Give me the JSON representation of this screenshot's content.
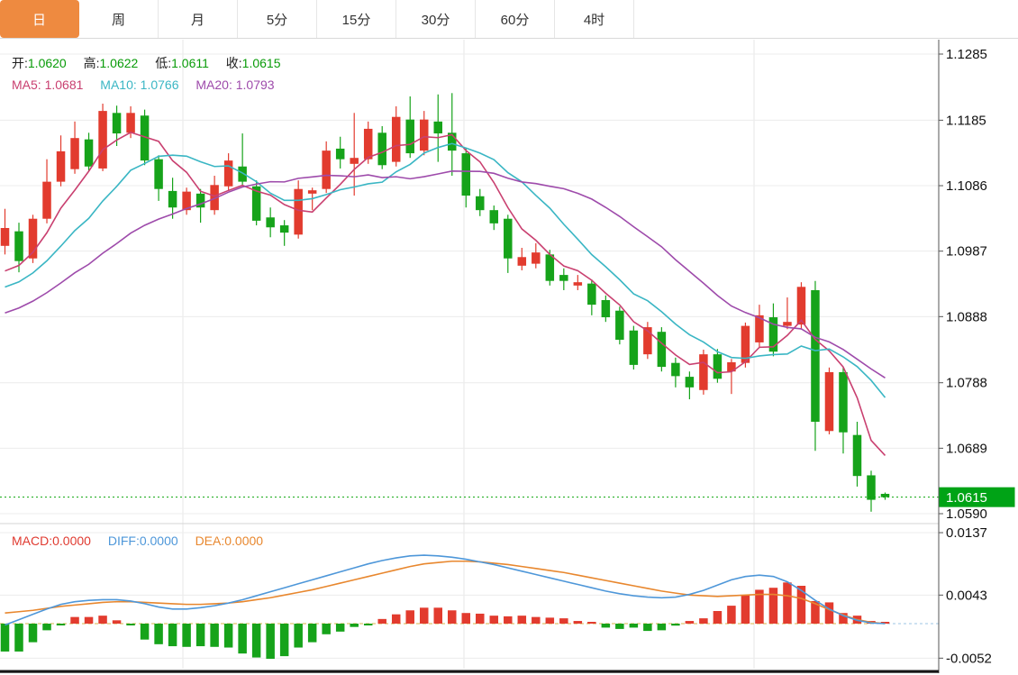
{
  "tabs": [
    {
      "label": "日",
      "active": true
    },
    {
      "label": "周",
      "active": false
    },
    {
      "label": "月",
      "active": false
    },
    {
      "label": "5分",
      "active": false
    },
    {
      "label": "15分",
      "active": false
    },
    {
      "label": "30分",
      "active": false
    },
    {
      "label": "60分",
      "active": false
    },
    {
      "label": "4时",
      "active": false
    }
  ],
  "colors": {
    "active_tab": "#ee8a40",
    "up_candle": "#e23b2e",
    "down_candle": "#16a31a",
    "ma5": "#c94070",
    "ma10": "#3ab6c4",
    "ma20": "#9e4bab",
    "diff_line": "#4e97d9",
    "dea_line": "#e8872e",
    "macd_label": "#e03a30",
    "ohlc_value": "#089b08",
    "price_badge": "#00a316",
    "current_price_line": "#0aa50a",
    "zero_dash_line": "#d8b44a",
    "grid": "#ececec",
    "axis": "#555555"
  },
  "price_panel": {
    "ohlc_legend": [
      {
        "label": "开:",
        "value": "1.0620"
      },
      {
        "label": "高:",
        "value": "1.0622"
      },
      {
        "label": "低:",
        "value": "1.0611"
      },
      {
        "label": "收:",
        "value": "1.0615"
      }
    ],
    "ma_legend": [
      {
        "label": "MA5:",
        "value": "1.0681"
      },
      {
        "label": "MA10:",
        "value": "1.0766"
      },
      {
        "label": "MA20:",
        "value": "1.0793"
      }
    ],
    "y_axis_labels": [
      "1.1285",
      "1.1185",
      "1.1086",
      "1.0987",
      "1.0888",
      "1.0788",
      "1.0689",
      "1.0590"
    ],
    "current_price_badge": "1.0615"
  },
  "macd_panel": {
    "legend": [
      {
        "label": "MACD:",
        "value": "0.0000"
      },
      {
        "label": "DIFF:",
        "value": "0.0000"
      },
      {
        "label": "DEA:",
        "value": "0.0000"
      }
    ],
    "y_axis_labels": [
      "0.0137",
      "0.0043",
      "-0.0052"
    ]
  },
  "chart_data": [
    {
      "type": "candlestick",
      "title": "EUR daily candlestick panel with MA5/MA10/MA20 overlays",
      "ylim": [
        1.059,
        1.1285
      ],
      "y_ticks": [
        1.1285,
        1.1185,
        1.1086,
        1.0987,
        1.0888,
        1.0788,
        1.0689,
        1.059
      ],
      "grid": true,
      "legend_position": "top-left",
      "current_price": 1.0615,
      "ma_periods": [
        5,
        10,
        20
      ],
      "ma_values_displayed": {
        "MA5": 1.0681,
        "MA10": 1.0766,
        "MA20": 1.0793
      },
      "ohlc_displayed": {
        "open": 1.062,
        "high": 1.0622,
        "low": 1.0611,
        "close": 1.0615
      },
      "ma_lead_in_closes": [
        1.0822,
        1.0829,
        1.0836,
        1.0844,
        1.0851,
        1.0858,
        1.0865,
        1.0872,
        1.088,
        1.0887,
        1.0894,
        1.0901,
        1.0908,
        1.0916,
        1.0923,
        1.093,
        1.0937,
        1.0944,
        1.0952
      ],
      "candles": [
        [
          1.0995,
          1.1051,
          1.0982,
          1.1022
        ],
        [
          1.1017,
          1.103,
          1.0955,
          1.0972
        ],
        [
          1.0976,
          1.1042,
          1.0969,
          1.1036
        ],
        [
          1.1036,
          1.1126,
          1.1029,
          1.1092
        ],
        [
          1.1092,
          1.1162,
          1.1085,
          1.1138
        ],
        [
          1.1111,
          1.1183,
          1.1104,
          1.1158
        ],
        [
          1.1156,
          1.1166,
          1.1108,
          1.1115
        ],
        [
          1.1112,
          1.121,
          1.1108,
          1.1199
        ],
        [
          1.1196,
          1.1207,
          1.1146,
          1.1165
        ],
        [
          1.1166,
          1.1206,
          1.1158,
          1.1196
        ],
        [
          1.1192,
          1.1201,
          1.1117,
          1.1124
        ],
        [
          1.1126,
          1.1132,
          1.1063,
          1.1081
        ],
        [
          1.1078,
          1.1098,
          1.1036,
          1.1053
        ],
        [
          1.1049,
          1.1083,
          1.1042,
          1.1077
        ],
        [
          1.1074,
          1.1081,
          1.103,
          1.1053
        ],
        [
          1.1049,
          1.1101,
          1.1042,
          1.1087
        ],
        [
          1.1085,
          1.1135,
          1.1078,
          1.1124
        ],
        [
          1.1115,
          1.1165,
          1.1085,
          1.1092
        ],
        [
          1.1085,
          1.1094,
          1.1026,
          1.1033
        ],
        [
          1.1038,
          1.1053,
          1.1008,
          1.1023
        ],
        [
          1.1026,
          1.1034,
          1.0995,
          1.1015
        ],
        [
          1.1012,
          1.1094,
          1.1006,
          1.1081
        ],
        [
          1.1074,
          1.1083,
          1.1049,
          1.1079
        ],
        [
          1.1081,
          1.1153,
          1.1075,
          1.1139
        ],
        [
          1.1142,
          1.116,
          1.1112,
          1.1126
        ],
        [
          1.1119,
          1.1196,
          1.1071,
          1.1128
        ],
        [
          1.1126,
          1.1183,
          1.1119,
          1.1172
        ],
        [
          1.1166,
          1.1176,
          1.1111,
          1.1117
        ],
        [
          1.1122,
          1.1206,
          1.1115,
          1.119
        ],
        [
          1.1186,
          1.1221,
          1.1128,
          1.1135
        ],
        [
          1.1139,
          1.1199,
          1.1132,
          1.1186
        ],
        [
          1.1183,
          1.1224,
          1.1122,
          1.1165
        ],
        [
          1.1166,
          1.1226,
          1.1101,
          1.1139
        ],
        [
          1.1135,
          1.1142,
          1.1053,
          1.1071
        ],
        [
          1.107,
          1.1081,
          1.104,
          1.1049
        ],
        [
          1.1049,
          1.1056,
          1.1019,
          1.1029
        ],
        [
          1.1036,
          1.1042,
          1.0954,
          1.0976
        ],
        [
          1.0965,
          1.0992,
          1.0958,
          1.0978
        ],
        [
          1.0968,
          1.0999,
          1.0961,
          1.0985
        ],
        [
          1.0982,
          1.0989,
          1.0935,
          1.0942
        ],
        [
          1.0951,
          1.0961,
          1.0928,
          1.0942
        ],
        [
          1.0935,
          1.0951,
          1.0928,
          1.094
        ],
        [
          1.0938,
          1.0944,
          1.089,
          1.0906
        ],
        [
          1.0913,
          1.092,
          1.088,
          1.0887
        ],
        [
          1.0897,
          1.0903,
          1.0846,
          1.0853
        ],
        [
          1.0867,
          1.0874,
          1.0808,
          1.0815
        ],
        [
          1.0831,
          1.088,
          1.0824,
          1.0872
        ],
        [
          1.0865,
          1.0872,
          1.0805,
          1.0812
        ],
        [
          1.0818,
          1.0826,
          1.0781,
          1.0798
        ],
        [
          1.0797,
          1.0805,
          1.0763,
          1.0781
        ],
        [
          1.0777,
          1.0838,
          1.077,
          1.0831
        ],
        [
          1.0831,
          1.0839,
          1.0788,
          1.0794
        ],
        [
          1.0805,
          1.0824,
          1.0771,
          1.0819
        ],
        [
          1.0818,
          1.0879,
          1.0811,
          1.0874
        ],
        [
          1.0849,
          1.0906,
          1.0842,
          1.089
        ],
        [
          1.0887,
          1.0908,
          1.0828,
          1.0835
        ],
        [
          1.0874,
          1.0917,
          1.0869,
          1.088
        ],
        [
          1.0876,
          1.094,
          1.0869,
          1.0933
        ],
        [
          1.0928,
          1.0942,
          1.0685,
          1.0729
        ],
        [
          1.0715,
          1.0811,
          1.071,
          1.0804
        ],
        [
          1.0804,
          1.0811,
          1.0681,
          1.0713
        ],
        [
          1.0709,
          1.0729,
          1.0631,
          1.0647
        ],
        [
          1.0648,
          1.0655,
          1.0593,
          1.0611
        ],
        [
          1.062,
          1.0622,
          1.0611,
          1.0615
        ]
      ]
    },
    {
      "type": "bar",
      "title": "MACD panel (histogram with DIFF and DEA lines)",
      "ylim": [
        -0.0075,
        0.0145
      ],
      "y_ticks": [
        0.0137,
        0.0043,
        -0.0052
      ],
      "values_displayed": {
        "MACD": 0.0,
        "DIFF": 0.0,
        "DEA": 0.0
      },
      "hist": [
        -0.0042,
        -0.0042,
        -0.0028,
        -0.001,
        -0.0001,
        0.001,
        0.001,
        0.0012,
        0.0005,
        -0.0002,
        -0.0024,
        -0.0031,
        -0.0034,
        -0.0035,
        -0.0034,
        -0.0035,
        -0.0036,
        -0.0045,
        -0.0051,
        -0.0053,
        -0.0049,
        -0.0036,
        -0.0028,
        -0.0016,
        -0.0012,
        -0.0005,
        -0.0001,
        0.0007,
        0.0014,
        0.002,
        0.0024,
        0.0024,
        0.002,
        0.0016,
        0.0015,
        0.0012,
        0.0011,
        0.0012,
        0.001,
        0.0009,
        0.0008,
        0.0004,
        0.0,
        -0.0006,
        -0.0008,
        -0.0006,
        -0.0011,
        -0.001,
        -0.0003,
        0.0004,
        0.0008,
        0.0019,
        0.0027,
        0.0043,
        0.0051,
        0.0054,
        0.0062,
        0.0057,
        0.0034,
        0.0032,
        0.0016,
        0.0012,
        0.0004,
        0.0
      ],
      "diff": [
        -0.0002,
        0.0006,
        0.0014,
        0.0022,
        0.0029,
        0.0033,
        0.0035,
        0.0036,
        0.0036,
        0.0034,
        0.003,
        0.0025,
        0.0022,
        0.0022,
        0.0024,
        0.0027,
        0.0031,
        0.0036,
        0.0042,
        0.0048,
        0.0054,
        0.006,
        0.0066,
        0.0072,
        0.0078,
        0.0084,
        0.009,
        0.0095,
        0.0099,
        0.0102,
        0.0103,
        0.0102,
        0.01,
        0.0097,
        0.0093,
        0.0089,
        0.0084,
        0.0079,
        0.0074,
        0.0069,
        0.0064,
        0.0059,
        0.0054,
        0.0049,
        0.0045,
        0.0042,
        0.004,
        0.0039,
        0.004,
        0.0044,
        0.005,
        0.0058,
        0.0066,
        0.0071,
        0.0073,
        0.0071,
        0.0063,
        0.005,
        0.0035,
        0.0022,
        0.0012,
        0.0005,
        0.0001,
        0.0
      ],
      "dea": [
        0.0016,
        0.0018,
        0.002,
        0.0023,
        0.0026,
        0.0028,
        0.003,
        0.0032,
        0.0033,
        0.0033,
        0.0032,
        0.0031,
        0.003,
        0.0029,
        0.0029,
        0.003,
        0.0031,
        0.0033,
        0.0036,
        0.0039,
        0.0043,
        0.0047,
        0.0051,
        0.0056,
        0.0061,
        0.0066,
        0.0071,
        0.0076,
        0.0081,
        0.0086,
        0.009,
        0.0092,
        0.0094,
        0.0094,
        0.0093,
        0.0091,
        0.0089,
        0.0086,
        0.0083,
        0.008,
        0.0077,
        0.0073,
        0.0069,
        0.0065,
        0.0061,
        0.0057,
        0.0053,
        0.0049,
        0.0046,
        0.0043,
        0.0042,
        0.0041,
        0.0042,
        0.0043,
        0.0044,
        0.0044,
        0.0042,
        0.0038,
        0.003,
        0.0021,
        0.0013,
        0.0006,
        0.0002,
        0.0
      ]
    }
  ]
}
